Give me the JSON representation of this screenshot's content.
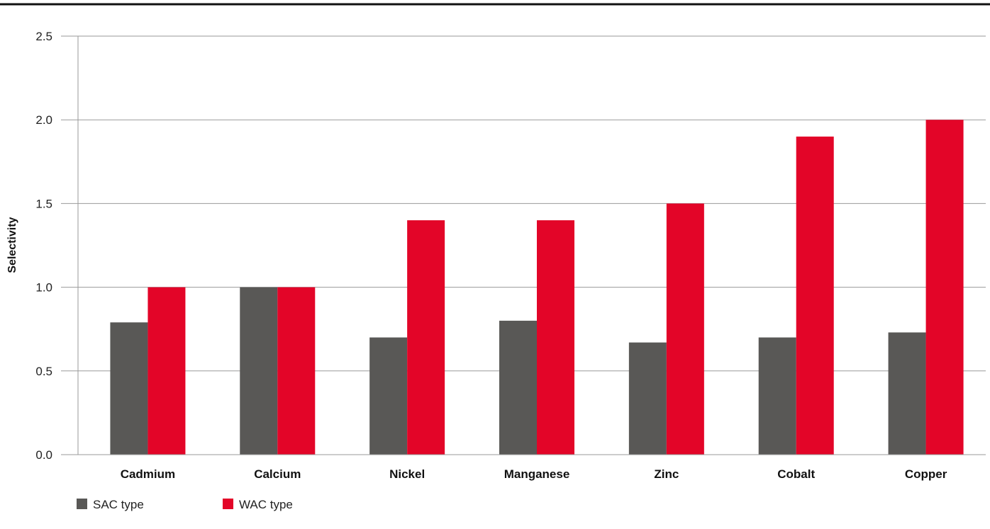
{
  "chart_data": {
    "type": "bar",
    "title": "",
    "xlabel": "",
    "ylabel": "Selectivity",
    "ylim": [
      0,
      2.5
    ],
    "yticks": [
      "0.0",
      "0.5",
      "1.0",
      "1.5",
      "2.0",
      "2.5"
    ],
    "grid": "horizontal",
    "legend_position": "bottom-left",
    "categories": [
      "Cadmium",
      "Calcium",
      "Nickel",
      "Manganese",
      "Zinc",
      "Cobalt",
      "Copper"
    ],
    "series": [
      {
        "name": "SAC type",
        "color": "#595856",
        "values": [
          0.79,
          1.0,
          0.7,
          0.8,
          0.67,
          0.7,
          0.73
        ]
      },
      {
        "name": "WAC type",
        "color": "#e30528",
        "values": [
          1.0,
          1.0,
          1.4,
          1.4,
          1.5,
          1.9,
          2.0
        ]
      }
    ]
  }
}
